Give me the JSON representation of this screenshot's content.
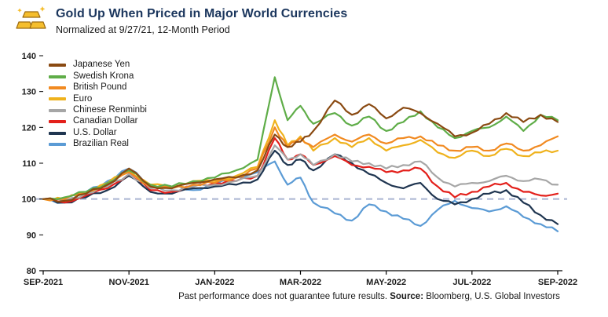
{
  "header": {
    "title": "Gold Up When Priced in Major World Currencies",
    "subtitle": "Normalized at 9/27/21, 12-Month Period"
  },
  "footer": {
    "disclaimer": "Past performance does not guarantee future results.",
    "source_label": "Source:",
    "source_value": "Bloomberg, U.S. Global Investors"
  },
  "colors": {
    "title": "#1B365D",
    "axis_text": "#1a1a1a",
    "baseline_dash": "#A9B3D1",
    "axis_line": "#000000",
    "gold_icon": "#F5BE2E"
  },
  "chart_data": {
    "type": "line",
    "title": "Gold Up When Priced in Major World Currencies",
    "subtitle": "Normalized at 9/27/21, 12-Month Period",
    "x_unit": "months since 9/27/2021",
    "x": [
      0,
      0.5,
      1,
      1.5,
      2,
      2.5,
      3,
      3.5,
      4,
      4.5,
      5,
      5.4,
      5.7,
      6,
      6.3,
      6.8,
      7.2,
      7.6,
      8,
      8.4,
      8.8,
      9.2,
      9.6,
      10,
      10.4,
      10.8,
      11.2,
      11.6,
      12
    ],
    "x_tick_positions": [
      0,
      2,
      4,
      6,
      8,
      10,
      12
    ],
    "x_tick_labels": [
      "SEP-2021",
      "NOV-2021",
      "JAN-2022",
      "MAR-2022",
      "MAY-2022",
      "JUL-2022",
      "SEP-2022"
    ],
    "ylim": [
      80,
      140
    ],
    "y_ticks": [
      140,
      130,
      120,
      110,
      100,
      90,
      80
    ],
    "baseline": 100,
    "grid": false,
    "legend_position": "top-left",
    "series": [
      {
        "name": "Japanese Yen",
        "color": "#8A4A12",
        "values": [
          100,
          99.5,
          101.5,
          104,
          108.5,
          103.5,
          103,
          104.5,
          105.5,
          106,
          108,
          118,
          114.5,
          116,
          119,
          127.5,
          123.5,
          126.5,
          122.5,
          125.5,
          124,
          121,
          117.5,
          118.5,
          121,
          124,
          121.5,
          123.5,
          121.5
        ]
      },
      {
        "name": "Swedish Krona",
        "color": "#5FAD48",
        "values": [
          100,
          100.5,
          102,
          104.5,
          108,
          104,
          103.5,
          105,
          106,
          108,
          111,
          134,
          122,
          126,
          121,
          124,
          120.5,
          123,
          119,
          121.5,
          124.5,
          120,
          117,
          119,
          120,
          123,
          119,
          123.5,
          122
        ]
      },
      {
        "name": "British Pound",
        "color": "#F18A21",
        "values": [
          100,
          100,
          102,
          104,
          107.5,
          103.5,
          103,
          104,
          104.5,
          106,
          108.5,
          120,
          114.5,
          117,
          114.5,
          118,
          116,
          118,
          115.5,
          117,
          117.5,
          115,
          113.5,
          114.5,
          113.5,
          115.5,
          113.5,
          115,
          117.5
        ]
      },
      {
        "name": "Euro",
        "color": "#EFB21C",
        "values": [
          100,
          100,
          102,
          104.5,
          108,
          104,
          103.5,
          105,
          105,
          106.5,
          109,
          122,
          115,
          117.5,
          113.5,
          117,
          114.5,
          117,
          113.5,
          115,
          116.5,
          113,
          111.5,
          113.5,
          112,
          114,
          112,
          113,
          113.5
        ]
      },
      {
        "name": "Chinese Renminbi",
        "color": "#A6A6A6",
        "values": [
          100,
          99.5,
          101.5,
          103.5,
          107,
          103,
          102.5,
          103.5,
          104,
          105,
          106.5,
          115,
          111,
          112.5,
          109.5,
          112.5,
          110.5,
          110,
          108.5,
          109.5,
          110.5,
          106,
          103.5,
          104.5,
          105,
          106.5,
          105,
          105.5,
          104
        ]
      },
      {
        "name": "Canadian Dollar",
        "color": "#E3201B",
        "values": [
          100,
          99,
          101,
          103,
          107,
          102.5,
          102,
          103.5,
          104.5,
          105,
          106.5,
          117,
          111,
          112.5,
          109.5,
          112,
          109.5,
          109,
          107.5,
          108,
          108.5,
          103.5,
          100.5,
          102,
          103.5,
          104.5,
          102,
          101,
          101.5
        ]
      },
      {
        "name": "U.S. Dollar",
        "color": "#1F3550",
        "values": [
          100,
          99,
          100.5,
          102.5,
          106.5,
          102,
          101.5,
          103,
          103.5,
          104,
          105.5,
          113.5,
          109.5,
          111,
          108,
          112.5,
          110,
          107,
          104.5,
          103,
          104.5,
          100,
          98.5,
          100,
          101.5,
          102.5,
          99,
          95.5,
          93
        ]
      },
      {
        "name": "Brazilian Real",
        "color": "#5B9BD5",
        "values": [
          100,
          99,
          102,
          105,
          108.5,
          104,
          103.5,
          102.5,
          104,
          106,
          107.5,
          110.5,
          104,
          106,
          99,
          96,
          94,
          98.5,
          96.5,
          94.5,
          92.5,
          97,
          99.5,
          97.5,
          96.5,
          98,
          95,
          93,
          91
        ]
      }
    ]
  }
}
